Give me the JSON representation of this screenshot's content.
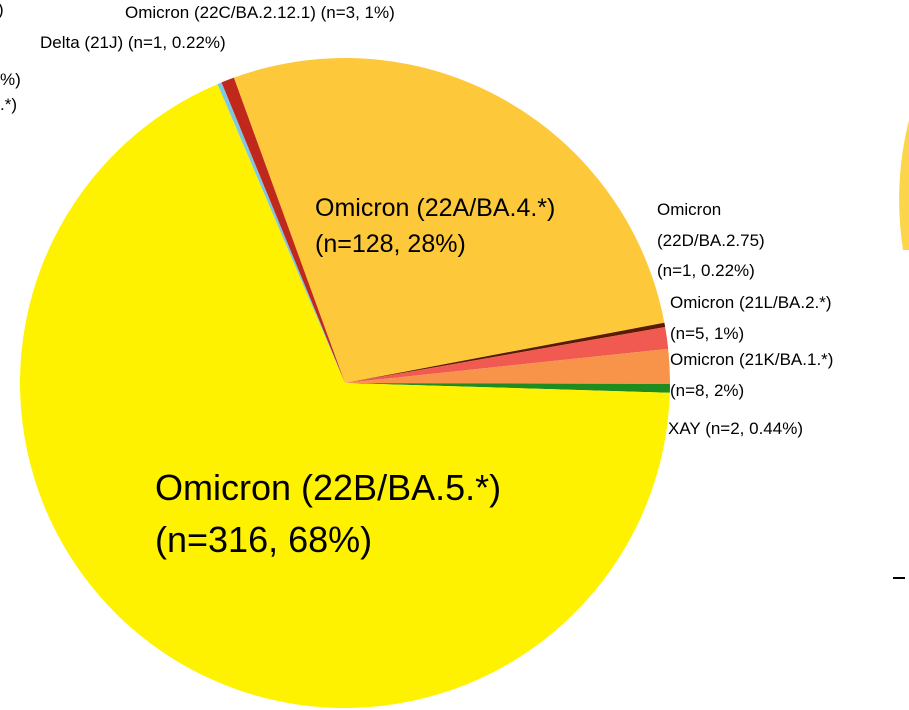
{
  "chart_data": {
    "type": "pie",
    "categories": [
      "Omicron (22A/BA.4.*)",
      "Omicron (22D/BA.2.75)",
      "Omicron (21L/BA.2.*)",
      "Omicron (21K/BA.1.*)",
      "XAY",
      "Omicron (22B/BA.5.*)",
      "Delta (21J)",
      "Omicron (22C/BA.2.12.1)"
    ],
    "values": [
      128,
      1,
      5,
      8,
      2,
      316,
      1,
      3
    ],
    "value_labels": [
      "(n=128, 28%)",
      "(n=1, 0.22%)",
      "(n=5, 1%)",
      "(n=8, 2%)",
      "(n=2, 0.44%)",
      "(n=316, 68%)",
      "(n=1, 0.22%)",
      "(n=3, 1%)"
    ],
    "colors": [
      "#fdc93a",
      "#5a1a00",
      "#f05a50",
      "#f7944a",
      "#1e8c1e",
      "#fff200",
      "#7ec8e3",
      "#c0281c"
    ],
    "annotations": [
      ")",
      "%)",
      ".*)"
    ]
  }
}
